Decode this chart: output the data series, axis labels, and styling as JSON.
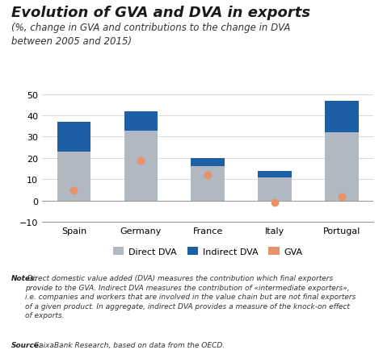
{
  "title": "Evolution of GVA and DVA in exports",
  "subtitle": "(%, change in GVA and contributions to the change in DVA\nbetween 2005 and 2015)",
  "categories": [
    "Spain",
    "Germany",
    "France",
    "Italy",
    "Portugal"
  ],
  "direct_dva": [
    23,
    33,
    16,
    11,
    32
  ],
  "indirect_dva": [
    14,
    9,
    4,
    3,
    15
  ],
  "gva": [
    5,
    19,
    12,
    -1,
    2
  ],
  "color_direct": "#b0b8c1",
  "color_indirect": "#1c5fa5",
  "color_gva": "#e8916a",
  "ylim": [
    -10,
    55
  ],
  "yticks": [
    -10,
    0,
    10,
    20,
    30,
    40,
    50
  ],
  "notes_bold": "Notes:",
  "notes_rest": " Direct domestic value added (DVA) measures the contribution which final exporters\nprovide to the GVA. Indirect DVA measures the contribution of «intermediate exporters»,\ni.e. companies and workers that are involved in the value chain but are not final exporters\nof a given product. In aggregate, indirect DVA provides a measure of the knock-on effect\nof exports.",
  "source_bold": "Source:",
  "source_rest": " CaixaBank Research, based on data from the OECD.",
  "legend_labels": [
    "Direct DVA",
    "Indirect DVA",
    "GVA"
  ],
  "background_color": "#ffffff",
  "title_fontsize": 13,
  "subtitle_fontsize": 8.5,
  "tick_fontsize": 8,
  "legend_fontsize": 8,
  "notes_fontsize": 6.5
}
